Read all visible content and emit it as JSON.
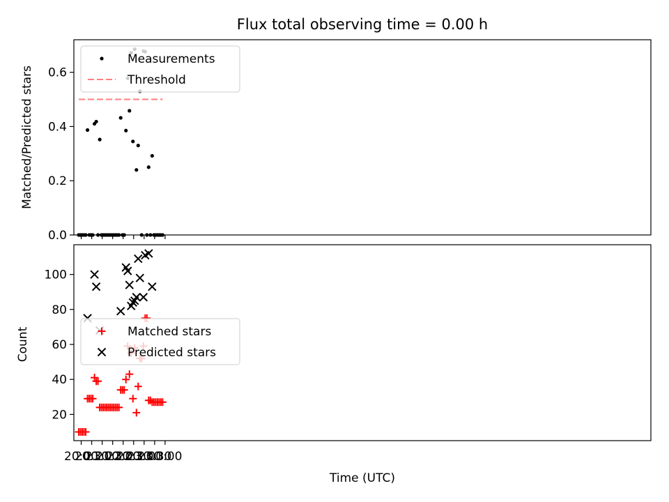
{
  "chart_data": {
    "title": "Flux total observing time = 0.00 h",
    "xlabel": "Time (UTC)",
    "x_ticks": [
      "20:00",
      "20:30",
      "21:00",
      "21:30",
      "22:00",
      "22:30",
      "23:00",
      "23:30",
      "00:00"
    ],
    "x_range": [
      "19:39",
      "23:10+01"
    ],
    "colors": {
      "measurement": "#000000",
      "threshold": "#ff7f7f",
      "matched": "#ff0000",
      "predicted": "#000000"
    },
    "panels": [
      {
        "type": "scatter",
        "ylabel": "Matched/Predicted stars",
        "ylim": [
          0,
          0.72
        ],
        "y_ticks": [
          "0.0",
          "0.2",
          "0.4",
          "0.6"
        ],
        "legend": "top-left",
        "series": [
          {
            "name": "Measurements",
            "marker": "dot",
            "points": [
              [
                "19:53",
                0
              ],
              [
                "19:58",
                0
              ],
              [
                "20:03",
                0
              ],
              [
                "20:08",
                0
              ],
              [
                "20:13",
                0
              ],
              [
                "20:18",
                0.387
              ],
              [
                "20:23",
                0
              ],
              [
                "20:28",
                0
              ],
              [
                "20:33",
                0
              ],
              [
                "20:38",
                0.41
              ],
              [
                "20:43",
                0.418
              ],
              [
                "20:48",
                0
              ],
              [
                "20:53",
                0.352
              ],
              [
                "20:58",
                0
              ],
              [
                "21:03",
                0
              ],
              [
                "21:08",
                0
              ],
              [
                "21:13",
                0
              ],
              [
                "21:18",
                0
              ],
              [
                "21:23",
                0
              ],
              [
                "21:28",
                0
              ],
              [
                "21:33",
                0
              ],
              [
                "21:38",
                0
              ],
              [
                "21:43",
                0
              ],
              [
                "21:48",
                0
              ],
              [
                "21:53",
                0.432
              ],
              [
                "21:58",
                0
              ],
              [
                "22:03",
                0
              ],
              [
                "22:08",
                0.385
              ],
              [
                "22:13",
                0.578
              ],
              [
                "22:18",
                0.458
              ],
              [
                "22:23",
                0.672
              ],
              [
                "22:28",
                0.345
              ],
              [
                "22:33",
                0.685
              ],
              [
                "22:38",
                0.24
              ],
              [
                "22:43",
                0.33
              ],
              [
                "22:48",
                0.53
              ],
              [
                "22:53",
                0
              ],
              [
                "22:58",
                0.678
              ],
              [
                "23:03",
                0.676
              ],
              [
                "23:08",
                0
              ],
              [
                "23:13",
                0.25
              ],
              [
                "23:18",
                0
              ],
              [
                "23:23",
                0.292
              ],
              [
                "23:28",
                0
              ],
              [
                "23:33",
                0
              ],
              [
                "23:38",
                0
              ],
              [
                "23:43",
                0
              ],
              [
                "23:48",
                0
              ],
              [
                "23:53",
                0
              ]
            ]
          },
          {
            "name": "Threshold",
            "style": "dashed",
            "y": 0.5,
            "x_from": "19:53",
            "x_to": "23:53"
          }
        ]
      },
      {
        "type": "scatter",
        "ylabel": "Count",
        "ylim": [
          5,
          117
        ],
        "y_ticks": [
          "20",
          "40",
          "60",
          "80",
          "100"
        ],
        "legend": "center-left",
        "series": [
          {
            "name": "Matched stars",
            "marker": "plus",
            "points": [
              [
                "19:53",
                10
              ],
              [
                "19:58",
                10
              ],
              [
                "20:03",
                10
              ],
              [
                "20:08",
                10
              ],
              [
                "20:13",
                10
              ],
              [
                "20:18",
                29
              ],
              [
                "20:23",
                29
              ],
              [
                "20:28",
                29
              ],
              [
                "20:33",
                29
              ],
              [
                "20:38",
                41
              ],
              [
                "20:43",
                39
              ],
              [
                "20:48",
                39
              ],
              [
                "20:53",
                24
              ],
              [
                "20:58",
                24
              ],
              [
                "21:03",
                24
              ],
              [
                "21:08",
                24
              ],
              [
                "21:13",
                24
              ],
              [
                "21:18",
                24
              ],
              [
                "21:23",
                24
              ],
              [
                "21:28",
                24
              ],
              [
                "21:33",
                24
              ],
              [
                "21:38",
                24
              ],
              [
                "21:43",
                24
              ],
              [
                "21:48",
                24
              ],
              [
                "21:53",
                34
              ],
              [
                "21:58",
                34
              ],
              [
                "22:03",
                34
              ],
              [
                "22:08",
                40
              ],
              [
                "22:13",
                59
              ],
              [
                "22:18",
                43
              ],
              [
                "22:23",
                55
              ],
              [
                "22:28",
                29
              ],
              [
                "22:33",
                58
              ],
              [
                "22:38",
                21
              ],
              [
                "22:43",
                36
              ],
              [
                "22:48",
                52
              ],
              [
                "22:53",
                52
              ],
              [
                "22:58",
                59
              ],
              [
                "23:03",
                75
              ],
              [
                "23:08",
                75
              ],
              [
                "23:13",
                28
              ],
              [
                "23:18",
                28
              ],
              [
                "23:23",
                27
              ],
              [
                "23:28",
                27
              ],
              [
                "23:33",
                27
              ],
              [
                "23:38",
                27
              ],
              [
                "23:43",
                27
              ],
              [
                "23:48",
                27
              ],
              [
                "23:53",
                27
              ]
            ]
          },
          {
            "name": "Predicted stars",
            "marker": "x",
            "points": [
              [
                "20:18",
                75
              ],
              [
                "20:38",
                100
              ],
              [
                "20:43",
                93
              ],
              [
                "20:53",
                68
              ],
              [
                "21:53",
                79
              ],
              [
                "22:08",
                104
              ],
              [
                "22:13",
                102
              ],
              [
                "22:18",
                94
              ],
              [
                "22:23",
                82
              ],
              [
                "22:28",
                84
              ],
              [
                "22:33",
                85
              ],
              [
                "22:38",
                87
              ],
              [
                "22:43",
                109
              ],
              [
                "22:48",
                98
              ],
              [
                "22:58",
                87
              ],
              [
                "23:03",
                111
              ],
              [
                "23:13",
                112
              ],
              [
                "23:23",
                93
              ]
            ]
          }
        ]
      }
    ]
  }
}
